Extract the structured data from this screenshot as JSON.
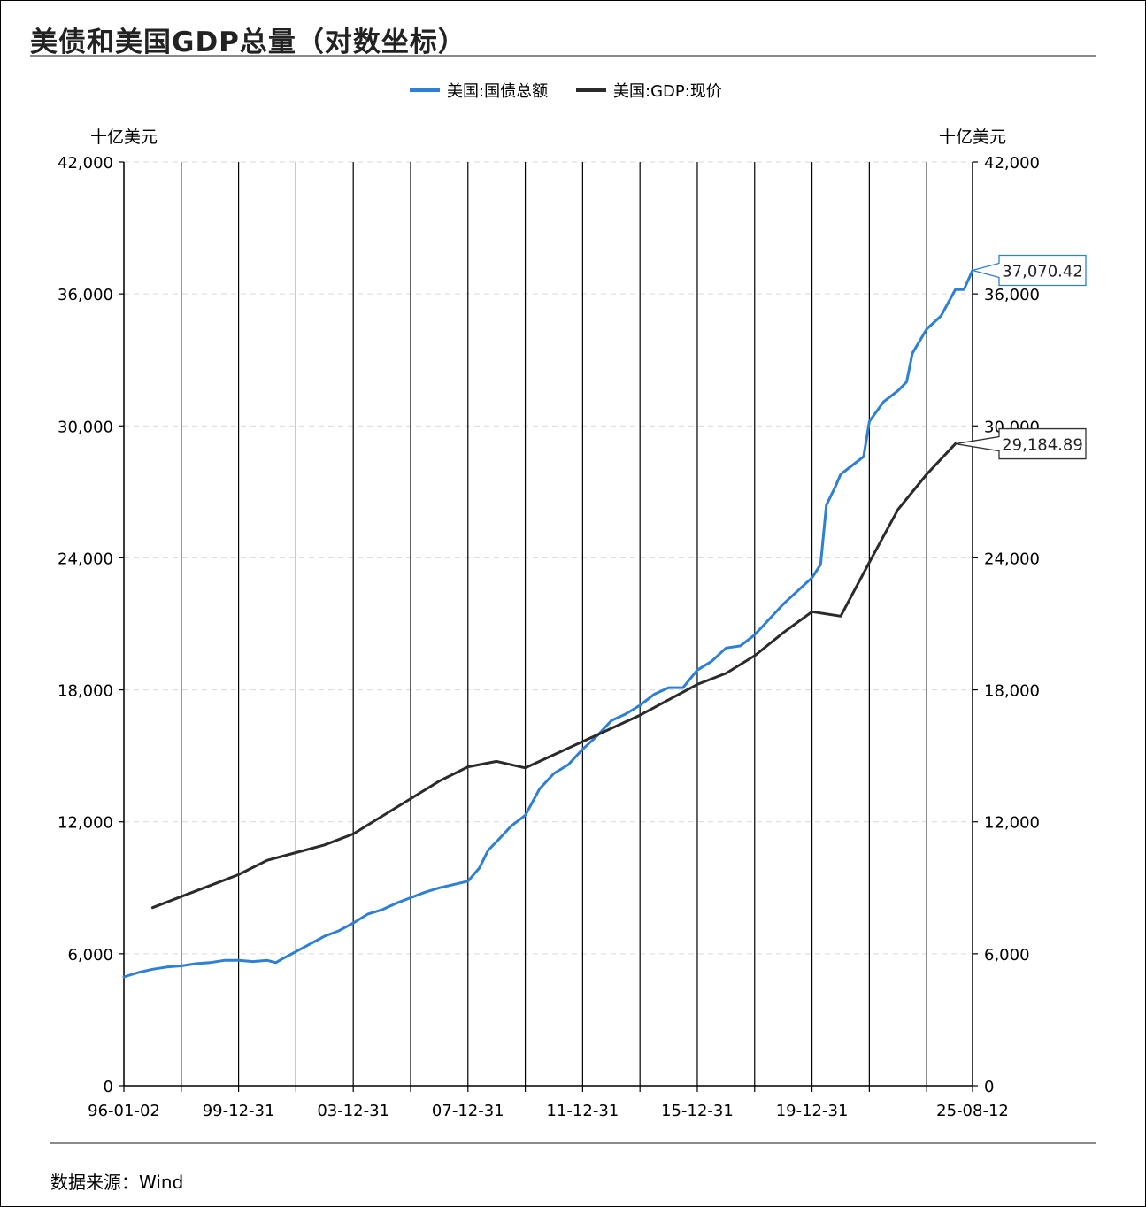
{
  "title": "美债和美国GDP总量（对数坐标）",
  "source": "数据来源：Wind",
  "colors": {
    "debt": "#2e7fd6",
    "gdp": "#2b2b2b",
    "grid": "#d9d9d9"
  },
  "chart_data": {
    "type": "line",
    "title": "美债和美国GDP总量（对数坐标）",
    "y_unit_left": "十亿美元",
    "y_unit_right": "十亿美元",
    "yticks": [
      0,
      6000,
      12000,
      18000,
      24000,
      30000,
      36000,
      42000
    ],
    "ytick_labels": [
      "0",
      "6,000",
      "12,000",
      "18,000",
      "24,000",
      "30,000",
      "36,000",
      "42,000"
    ],
    "ylim": [
      0,
      42000
    ],
    "xlim": [
      1996.0,
      2025.6
    ],
    "xtick_labels": [
      "96-01-02",
      "99-12-31",
      "03-12-31",
      "07-12-31",
      "11-12-31",
      "15-12-31",
      "19-12-31",
      "25-08-12"
    ],
    "xtick_positions": [
      1996.0,
      2000.0,
      2004.0,
      2008.0,
      2012.0,
      2016.0,
      2020.0,
      2025.6
    ],
    "vgrid_positions": [
      1996.0,
      1998.0,
      2000.0,
      2002.0,
      2004.0,
      2006.0,
      2008.0,
      2010.0,
      2012.0,
      2014.0,
      2016.0,
      2018.0,
      2020.0,
      2022.0,
      2024.0,
      2025.6
    ],
    "legend_position": "top-center",
    "series": [
      {
        "name": "美国:国债总额",
        "color": "#2e7fd6",
        "last_label": "37,070.42",
        "x": [
          1996.0,
          1996.5,
          1997.0,
          1997.5,
          1998.0,
          1998.5,
          1999.0,
          1999.5,
          2000.0,
          2000.5,
          2001.0,
          2001.3,
          2001.5,
          2002.0,
          2002.5,
          2003.0,
          2003.5,
          2004.0,
          2004.5,
          2005.0,
          2005.5,
          2006.0,
          2006.5,
          2007.0,
          2007.5,
          2008.0,
          2008.4,
          2008.7,
          2009.0,
          2009.5,
          2010.0,
          2010.5,
          2011.0,
          2011.5,
          2012.0,
          2012.5,
          2013.0,
          2013.5,
          2014.0,
          2014.5,
          2015.0,
          2015.5,
          2016.0,
          2016.5,
          2017.0,
          2017.5,
          2018.0,
          2018.5,
          2019.0,
          2019.5,
          2020.0,
          2020.3,
          2020.5,
          2020.8,
          2021.0,
          2021.5,
          2021.8,
          2022.0,
          2022.5,
          2023.0,
          2023.3,
          2023.5,
          2024.0,
          2024.5,
          2025.0,
          2025.3,
          2025.6
        ],
        "y": [
          4950,
          5150,
          5300,
          5400,
          5450,
          5550,
          5600,
          5700,
          5700,
          5650,
          5700,
          5600,
          5750,
          6100,
          6450,
          6800,
          7050,
          7400,
          7800,
          8000,
          8300,
          8550,
          8800,
          9000,
          9150,
          9300,
          9900,
          10700,
          11100,
          11800,
          12300,
          13500,
          14200,
          14600,
          15300,
          15900,
          16600,
          16900,
          17300,
          17800,
          18100,
          18100,
          18900,
          19300,
          19900,
          20000,
          20500,
          21200,
          21900,
          22500,
          23100,
          23700,
          26400,
          27200,
          27800,
          28300,
          28600,
          30200,
          31100,
          31600,
          32000,
          33300,
          34400,
          35000,
          36200,
          36200,
          37070.42
        ]
      },
      {
        "name": "美国:GDP:现价",
        "color": "#2b2b2b",
        "last_label": "29,184.89",
        "x": [
          1997.0,
          1998.0,
          1999.0,
          2000.0,
          2001.0,
          2002.0,
          2003.0,
          2004.0,
          2005.0,
          2006.0,
          2007.0,
          2008.0,
          2009.0,
          2010.0,
          2011.0,
          2012.0,
          2013.0,
          2014.0,
          2015.0,
          2016.0,
          2017.0,
          2018.0,
          2019.0,
          2020.0,
          2021.0,
          2022.0,
          2023.0,
          2024.0,
          2025.0
        ],
        "y": [
          8100,
          8600,
          9100,
          9600,
          10250,
          10600,
          10950,
          11450,
          12250,
          13050,
          13850,
          14500,
          14750,
          14450,
          15050,
          15650,
          16250,
          16850,
          17550,
          18250,
          18750,
          19550,
          20600,
          21550,
          21350,
          23800,
          26200,
          27800,
          29184.89
        ]
      }
    ]
  }
}
